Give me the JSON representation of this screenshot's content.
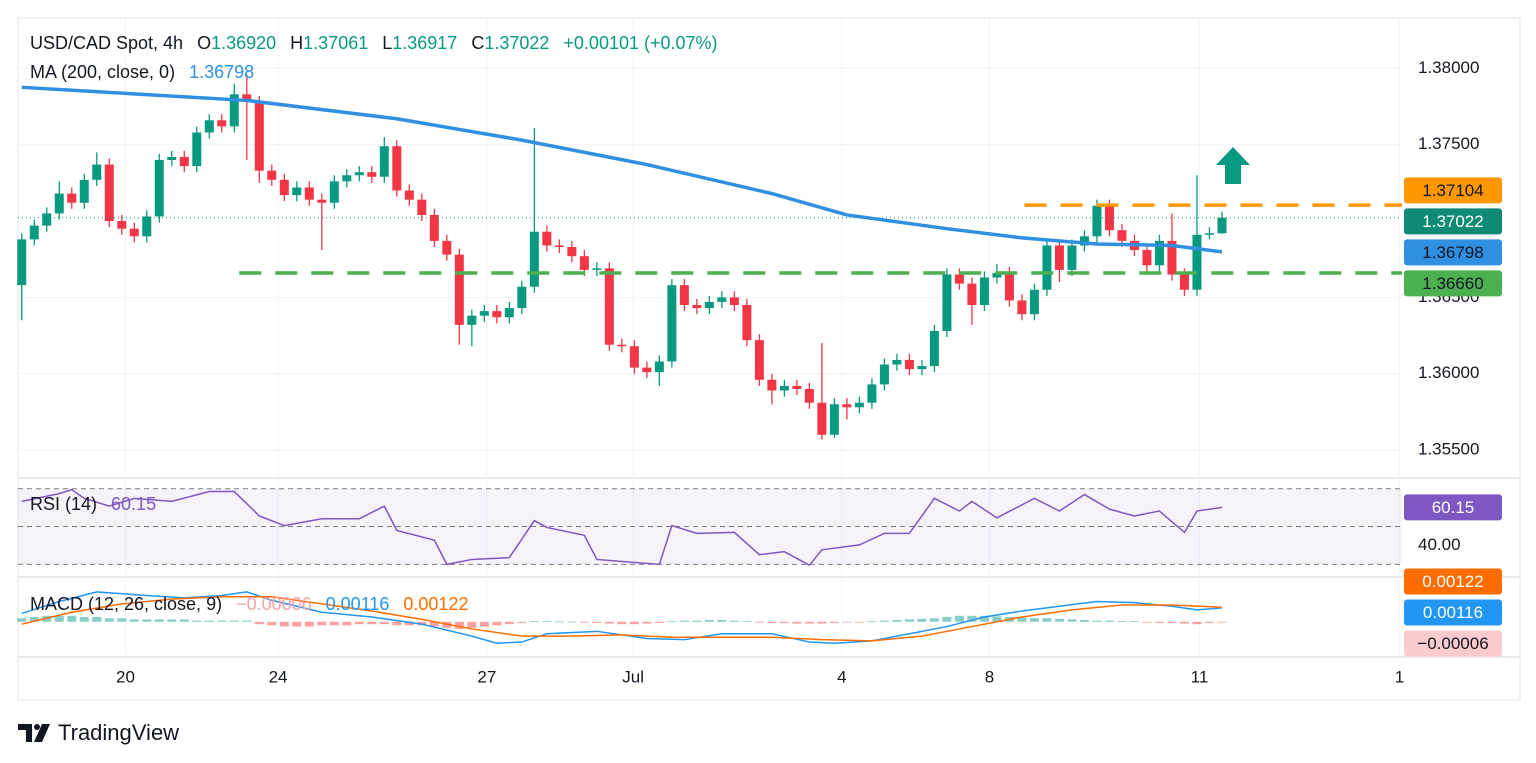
{
  "header": {
    "symbol": "USD/CAD Spot, 4h",
    "ohlc": [
      {
        "key": "O",
        "value": "1.36920"
      },
      {
        "key": "H",
        "value": "1.37061"
      },
      {
        "key": "L",
        "value": "1.36917"
      },
      {
        "key": "C",
        "value": "1.37022"
      }
    ],
    "change": "+0.00101 (+0.07%)"
  },
  "chart_data": [
    {
      "type": "candlestick",
      "xlim": [
        -0.3,
        110.4
      ],
      "xticks": [
        {
          "value": 8.3,
          "label": "20"
        },
        {
          "value": 20.5,
          "label": "24"
        },
        {
          "value": 37.2,
          "label": "27"
        },
        {
          "value": 48.9,
          "label": "Jul"
        },
        {
          "value": 65.6,
          "label": "4"
        },
        {
          "value": 77.4,
          "label": "8"
        },
        {
          "value": 94.2,
          "label": "11"
        },
        {
          "value": 110.2,
          "label": "1"
        }
      ],
      "ylim": [
        1.3533,
        1.3833
      ],
      "yticks": [
        {
          "value": 1.355,
          "label": "1.35500"
        },
        {
          "value": 1.36,
          "label": "1.36000"
        },
        {
          "value": 1.365,
          "label": "1.36500"
        },
        {
          "value": 1.375,
          "label": "1.37500"
        },
        {
          "value": 1.38,
          "label": "1.38000"
        }
      ],
      "grid": true,
      "up_color": "#089981",
      "down_color": "#f23645",
      "candles": {
        "open": [
          1.3658,
          1.3688,
          1.3697,
          1.3705,
          1.3718,
          1.3712,
          1.3727,
          1.3737,
          1.37,
          1.3695,
          1.369,
          1.3703,
          1.374,
          1.3742,
          1.3736,
          1.3758,
          1.3766,
          1.3762,
          1.3783,
          1.3778,
          1.3733,
          1.3727,
          1.3717,
          1.3722,
          1.3714,
          1.3712,
          1.3726,
          1.373,
          1.3732,
          1.3729,
          1.3749,
          1.372,
          1.3714,
          1.3704,
          1.3687,
          1.3678,
          1.3632,
          1.3638,
          1.3641,
          1.3637,
          1.3643,
          1.3657,
          1.3693,
          1.3684,
          1.3683,
          1.3677,
          1.3668,
          1.3669,
          1.3619,
          1.3618,
          1.3604,
          1.3601,
          1.3608,
          1.3658,
          1.3645,
          1.3643,
          1.3647,
          1.365,
          1.3645,
          1.3622,
          1.3596,
          1.3589,
          1.3592,
          1.359,
          1.3581,
          1.356,
          1.358,
          1.3578,
          1.3581,
          1.3593,
          1.3606,
          1.3609,
          1.3603,
          1.3605,
          1.3628,
          1.3665,
          1.3659,
          1.3645,
          1.3663,
          1.3666,
          1.3648,
          1.3639,
          1.3655,
          1.3684,
          1.3668,
          1.3684,
          1.369,
          1.371,
          1.3694,
          1.3687,
          1.3681,
          1.3671,
          1.3687,
          1.3665,
          1.3655,
          1.3691,
          1.3692
        ],
        "high": [
          1.3692,
          1.3701,
          1.3709,
          1.3726,
          1.3722,
          1.3731,
          1.3745,
          1.3741,
          1.3704,
          1.3699,
          1.3707,
          1.3744,
          1.3746,
          1.3746,
          1.3762,
          1.377,
          1.377,
          1.379,
          1.3796,
          1.3782,
          1.3737,
          1.3731,
          1.3726,
          1.3726,
          1.3718,
          1.373,
          1.3734,
          1.3736,
          1.3736,
          1.3755,
          1.3753,
          1.3724,
          1.3718,
          1.3708,
          1.3691,
          1.3682,
          1.3642,
          1.3645,
          1.3645,
          1.3647,
          1.3661,
          1.3761,
          1.3697,
          1.3688,
          1.3687,
          1.3681,
          1.3673,
          1.3673,
          1.3623,
          1.3622,
          1.3608,
          1.3612,
          1.3662,
          1.3662,
          1.3649,
          1.3651,
          1.3654,
          1.3654,
          1.3649,
          1.3626,
          1.36,
          1.3596,
          1.3596,
          1.3594,
          1.362,
          1.3584,
          1.3584,
          1.3585,
          1.3597,
          1.361,
          1.3613,
          1.3613,
          1.3609,
          1.3632,
          1.3669,
          1.3669,
          1.3663,
          1.3667,
          1.3672,
          1.367,
          1.3652,
          1.3659,
          1.3688,
          1.3688,
          1.3688,
          1.3694,
          1.3714,
          1.3714,
          1.3698,
          1.3691,
          1.3685,
          1.3691,
          1.3705,
          1.3669,
          1.373,
          1.3696,
          1.37061
        ],
        "low": [
          1.3635,
          1.3684,
          1.3693,
          1.3701,
          1.3708,
          1.3708,
          1.3723,
          1.3696,
          1.3691,
          1.3686,
          1.3686,
          1.3699,
          1.3736,
          1.3732,
          1.3732,
          1.3754,
          1.3758,
          1.3758,
          1.374,
          1.3725,
          1.3723,
          1.3713,
          1.3713,
          1.371,
          1.3681,
          1.3708,
          1.3722,
          1.3726,
          1.3725,
          1.3725,
          1.3716,
          1.371,
          1.37,
          1.3683,
          1.3674,
          1.3619,
          1.3618,
          1.3634,
          1.3633,
          1.3633,
          1.3639,
          1.3653,
          1.368,
          1.3679,
          1.3673,
          1.3664,
          1.3664,
          1.3615,
          1.3614,
          1.36,
          1.3597,
          1.3592,
          1.3604,
          1.3641,
          1.3639,
          1.3639,
          1.3643,
          1.3641,
          1.3618,
          1.3592,
          1.358,
          1.3585,
          1.3586,
          1.3577,
          1.3557,
          1.3558,
          1.357,
          1.3574,
          1.3577,
          1.3589,
          1.3602,
          1.3599,
          1.3599,
          1.3601,
          1.3624,
          1.3655,
          1.3632,
          1.3641,
          1.3659,
          1.3644,
          1.3635,
          1.3635,
          1.3651,
          1.366,
          1.3664,
          1.368,
          1.3686,
          1.369,
          1.3683,
          1.3677,
          1.3667,
          1.3667,
          1.3661,
          1.3651,
          1.3651,
          1.3688,
          1.36917
        ],
        "close": [
          1.3688,
          1.3697,
          1.3705,
          1.3718,
          1.3712,
          1.3727,
          1.3737,
          1.37,
          1.3695,
          1.369,
          1.3703,
          1.374,
          1.3742,
          1.3736,
          1.3758,
          1.3766,
          1.3762,
          1.3783,
          1.3778,
          1.3733,
          1.3727,
          1.3717,
          1.3722,
          1.3714,
          1.3712,
          1.3726,
          1.373,
          1.3732,
          1.3729,
          1.3749,
          1.372,
          1.3714,
          1.3704,
          1.3687,
          1.3678,
          1.3632,
          1.3638,
          1.3641,
          1.3637,
          1.3643,
          1.3657,
          1.3693,
          1.3684,
          1.3683,
          1.3677,
          1.3668,
          1.3669,
          1.3619,
          1.3618,
          1.3604,
          1.3601,
          1.3608,
          1.3658,
          1.3645,
          1.3643,
          1.3647,
          1.365,
          1.3645,
          1.3622,
          1.3596,
          1.3589,
          1.3592,
          1.359,
          1.3581,
          1.356,
          1.358,
          1.3578,
          1.3581,
          1.3593,
          1.3606,
          1.3609,
          1.3603,
          1.3605,
          1.3628,
          1.3665,
          1.3659,
          1.3645,
          1.3663,
          1.3666,
          1.3648,
          1.3639,
          1.3655,
          1.3684,
          1.3668,
          1.3684,
          1.369,
          1.371,
          1.3694,
          1.3687,
          1.3681,
          1.3671,
          1.3687,
          1.3665,
          1.3655,
          1.3691,
          1.3692,
          1.37022
        ]
      },
      "series": [
        {
          "name": "MA (200, close, 0)",
          "color": "#2f8fe0",
          "x": [
            0,
            18,
            30,
            40,
            50,
            60,
            66,
            74,
            80,
            86,
            92,
            96
          ],
          "values": [
            1.37876,
            1.3779,
            1.3767,
            1.3753,
            1.3737,
            1.3718,
            1.3704,
            1.3695,
            1.3689,
            1.3685,
            1.3684,
            1.36798
          ],
          "last_label": "1.36798"
        }
      ],
      "last_price": {
        "value": 1.37022,
        "label": "1.37022",
        "color": "#0f8a74"
      },
      "levels": [
        {
          "value": 1.37104,
          "label": "1.37104",
          "color": "#ff9800",
          "x_start": 80.2
        },
        {
          "value": 1.3666,
          "label": "1.36660",
          "color": "#4caf50",
          "x_start": 17.4
        }
      ]
    },
    {
      "type": "line",
      "ylim": [
        24.9,
        74.6
      ],
      "yticks": [
        {
          "value": 40,
          "label": "40.00"
        }
      ],
      "bands": [
        70,
        50,
        30
      ],
      "series": [
        {
          "name": "RSI (14)",
          "color": "#7e57c2",
          "x": [
            0,
            3,
            4,
            5,
            7,
            9,
            12,
            15,
            17,
            19,
            21,
            24,
            27,
            29,
            30,
            33,
            34,
            36,
            39,
            41,
            42,
            45,
            46,
            49,
            51,
            52,
            54,
            57,
            59,
            61,
            63,
            64,
            67,
            69,
            71,
            73,
            75,
            76,
            78,
            81,
            83,
            85,
            87,
            89,
            91,
            93,
            94,
            96
          ],
          "values": [
            63.3,
            67.4,
            69.5,
            64.9,
            60.8,
            64.9,
            63.3,
            68.5,
            68.5,
            55.6,
            50.5,
            54.1,
            54.1,
            60.8,
            47.9,
            42.8,
            30,
            32.6,
            33.6,
            53.1,
            49.5,
            45.4,
            32.6,
            31.0,
            30,
            50.5,
            46.4,
            46.9,
            35.1,
            36.7,
            29.5,
            37.7,
            40.3,
            46.4,
            46.4,
            64.9,
            58.2,
            63.3,
            54.6,
            64.9,
            58.2,
            66.9,
            59.2,
            55.6,
            58.2,
            46.9,
            58.2,
            60.15
          ],
          "last_label": "60.15"
        }
      ]
    },
    {
      "type": "macd",
      "title": "MACD (12, 26, close, 9)",
      "ylim": [
        -0.0027,
        0.0035
      ],
      "histogram": {
        "pos_color": "#26a69a",
        "neg_color": "#ff5252",
        "values": [
          0.0003,
          0.0004,
          0.0005,
          0.0005,
          0.0005,
          0.0004,
          0.0004,
          0.0003,
          0.0003,
          0.0002,
          0.0002,
          0.0002,
          0.0002,
          0.0002,
          0.0001,
          0.0001,
          0.0001,
          0.0001,
          0.0001,
          -0.0002,
          -0.0003,
          -0.0004,
          -0.0004,
          -0.0004,
          -0.0003,
          -0.0003,
          -0.0003,
          -0.0002,
          -0.0002,
          -0.0002,
          -0.0003,
          -0.0003,
          -0.0003,
          -0.0004,
          -0.0005,
          -0.0006,
          -0.0005,
          -0.0004,
          -0.0003,
          -0.0002,
          -0.0001,
          5e-05,
          5e-05,
          3e-05,
          2e-05,
          -5e-05,
          -0.0001,
          -0.00015,
          -0.0002,
          -0.0002,
          -0.00015,
          -0.0001,
          5e-05,
          0.0001,
          0.0001,
          0.00015,
          0.00015,
          0.0001,
          5e-05,
          -5e-05,
          -0.0001,
          -0.0001,
          -0.00015,
          -0.00015,
          -0.00015,
          -0.0001,
          -5e-05,
          -5e-05,
          5e-05,
          0.0001,
          0.00015,
          0.0002,
          0.00025,
          0.0003,
          0.0004,
          0.0005,
          0.0005,
          0.0005,
          0.00045,
          0.0004,
          0.00035,
          0.0003,
          0.0003,
          0.00025,
          0.0002,
          0.00015,
          0.0001,
          0.0001,
          5e-05,
          5e-05,
          -5e-05,
          -0.0001,
          -0.0001,
          -0.00015,
          -0.0002,
          -0.0001,
          -6e-05
        ],
        "last_label": "−0.00006",
        "badge_color": "#fccbcd"
      },
      "series": [
        {
          "color": "#2196f3",
          "x": [
            0,
            3,
            6,
            10,
            13,
            16,
            18,
            20,
            24,
            28,
            32,
            36,
            38,
            40,
            42,
            46,
            50,
            53,
            56,
            60,
            63,
            65,
            68,
            71,
            74,
            77,
            80,
            83,
            86,
            89,
            92,
            94,
            96
          ],
          "values": [
            0.0007,
            0.0017,
            0.0025,
            0.0022,
            0.002,
            0.0022,
            0.0025,
            0.0018,
            0.0008,
            0.0004,
            -0.0002,
            -0.0012,
            -0.0018,
            -0.0017,
            -0.001,
            -0.0008,
            -0.0014,
            -0.0015,
            -0.001,
            -0.001,
            -0.0017,
            -0.0018,
            -0.0016,
            -0.001,
            -0.0004,
            0.0004,
            0.0009,
            0.0013,
            0.0017,
            0.0016,
            0.0013,
            0.001,
            0.00116
          ],
          "last_label": "0.00116"
        },
        {
          "color": "#ff6d00",
          "x": [
            0,
            4,
            8,
            12,
            16,
            20,
            24,
            28,
            32,
            36,
            40,
            44,
            48,
            52,
            56,
            60,
            64,
            68,
            72,
            76,
            80,
            84,
            88,
            92,
            96
          ],
          "values": [
            -0.0002,
            0.0008,
            0.0015,
            0.0019,
            0.0021,
            0.0021,
            0.0015,
            0.0009,
            0.0002,
            -0.0006,
            -0.0012,
            -0.0012,
            -0.0011,
            -0.0013,
            -0.0013,
            -0.0013,
            -0.0015,
            -0.0016,
            -0.0012,
            -0.0004,
            0.0004,
            0.001,
            0.0014,
            0.0014,
            0.00122
          ],
          "last_label": "0.00122"
        }
      ]
    }
  ],
  "branding": "TradingView"
}
